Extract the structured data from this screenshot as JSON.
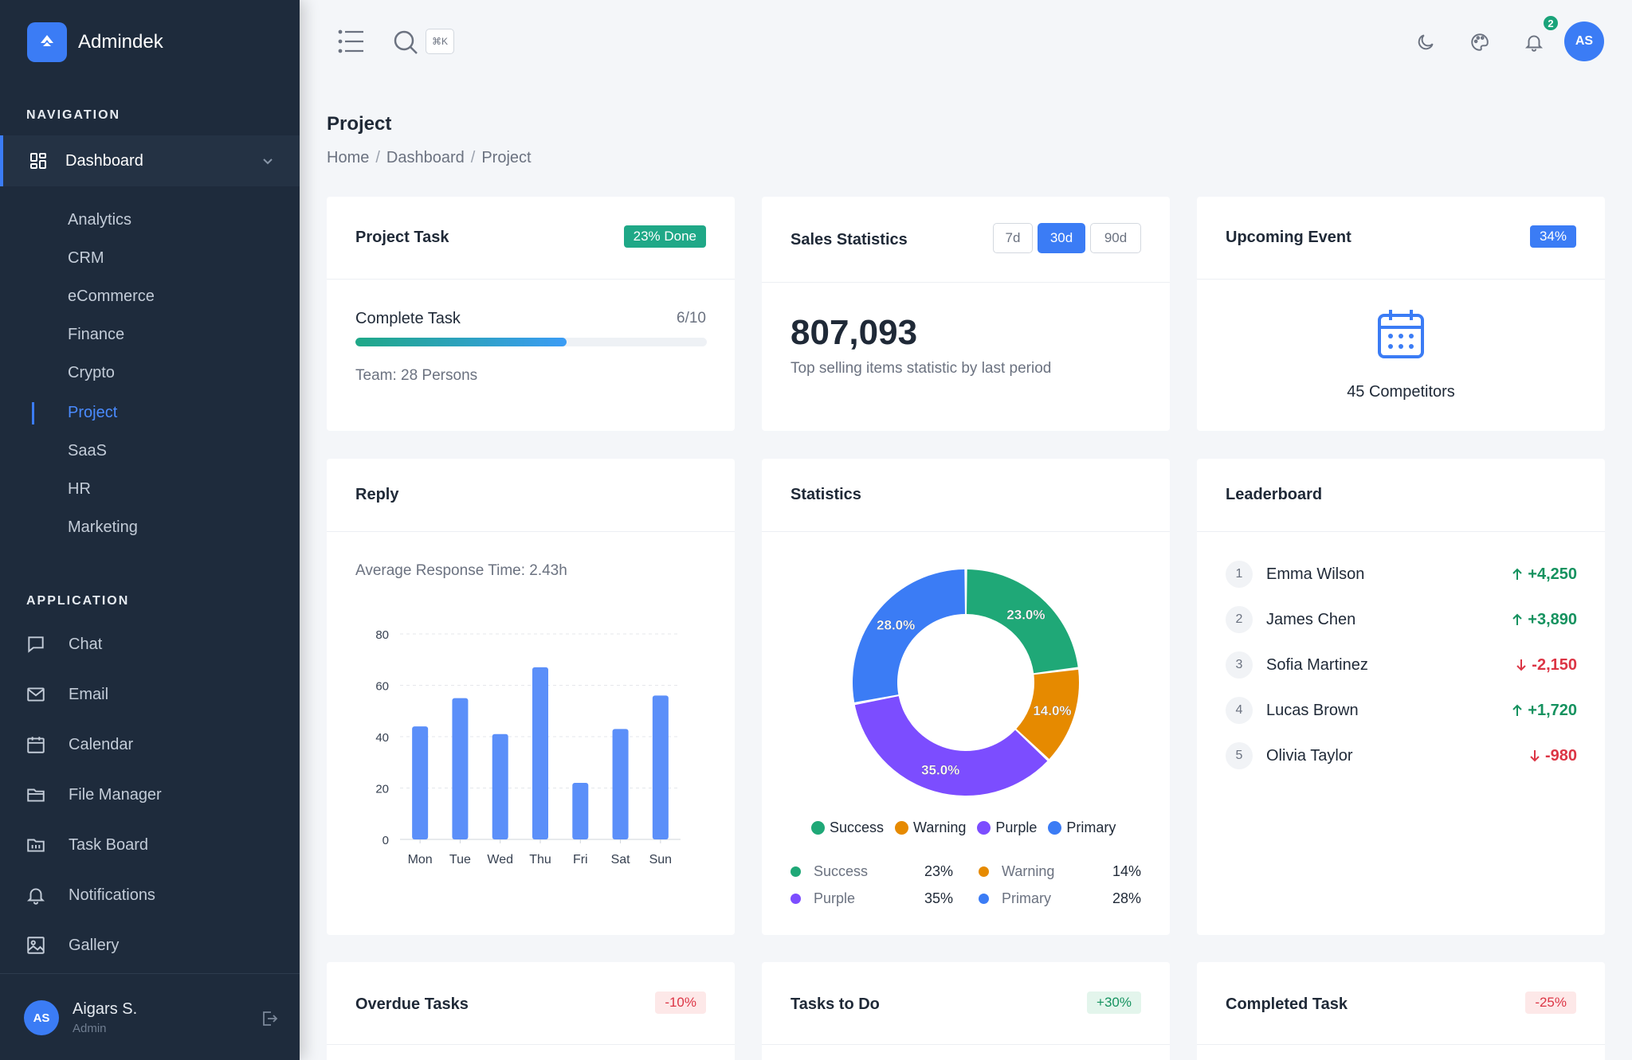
{
  "app": {
    "name": "Admindek"
  },
  "sidebar": {
    "nav_label": "NAVIGATION",
    "dashboard_label": "Dashboard",
    "sub_items": [
      "Analytics",
      "CRM",
      "eCommerce",
      "Finance",
      "Crypto",
      "Project",
      "SaaS",
      "HR",
      "Marketing"
    ],
    "active_sub": "Project",
    "app_label": "APPLICATION",
    "app_items": [
      {
        "label": "Chat",
        "icon": "chat-icon"
      },
      {
        "label": "Email",
        "icon": "mail-icon"
      },
      {
        "label": "Calendar",
        "icon": "calendar-icon"
      },
      {
        "label": "File Manager",
        "icon": "folder-icon"
      },
      {
        "label": "Task Board",
        "icon": "task-board-icon"
      },
      {
        "label": "Notifications",
        "icon": "bell-icon"
      },
      {
        "label": "Gallery",
        "icon": "image-icon"
      }
    ],
    "user": {
      "initials": "AS",
      "name": "Aigars S.",
      "role": "Admin"
    }
  },
  "header": {
    "kbd": "⌘K",
    "notification_count": "2",
    "avatar_initials": "AS"
  },
  "page": {
    "title": "Project",
    "breadcrumb": [
      "Home",
      "Dashboard",
      "Project"
    ]
  },
  "cards": {
    "project_task": {
      "title": "Project Task",
      "badge": "23% Done",
      "label": "Complete Task",
      "progress_text": "6/10",
      "progress": 0.6,
      "team": "Team: 28 Persons"
    },
    "sales": {
      "title": "Sales Statistics",
      "ranges": [
        "7d",
        "30d",
        "90d"
      ],
      "active_range": "30d",
      "value": "807,093",
      "caption": "Top selling items statistic by last period"
    },
    "event": {
      "title": "Upcoming Event",
      "badge": "34%",
      "text": "45 Competitors"
    },
    "reply": {
      "title": "Reply",
      "subtitle": "Average Response Time: 2.43h"
    },
    "statistics": {
      "title": "Statistics"
    },
    "leaderboard": {
      "title": "Leaderboard",
      "rows": [
        {
          "rank": "1",
          "name": "Emma Wilson",
          "score": "+4,250",
          "dir": "up"
        },
        {
          "rank": "2",
          "name": "James Chen",
          "score": "+3,890",
          "dir": "up"
        },
        {
          "rank": "3",
          "name": "Sofia Martinez",
          "score": "-2,150",
          "dir": "down"
        },
        {
          "rank": "4",
          "name": "Lucas Brown",
          "score": "+1,720",
          "dir": "up"
        },
        {
          "rank": "5",
          "name": "Olivia Taylor",
          "score": "-980",
          "dir": "down"
        }
      ]
    },
    "overdue": {
      "title": "Overdue Tasks",
      "badge": "-10%"
    },
    "todo": {
      "title": "Tasks to Do",
      "badge": "+30%"
    },
    "completed": {
      "title": "Completed Task",
      "badge": "-25%"
    }
  },
  "chart_data": [
    {
      "type": "bar",
      "categories": [
        "Mon",
        "Tue",
        "Wed",
        "Thu",
        "Fri",
        "Sat",
        "Sun"
      ],
      "values": [
        44,
        55,
        41,
        67,
        22,
        43,
        56
      ],
      "ylim": [
        0,
        80
      ],
      "yticks": [
        0,
        20,
        40,
        60,
        80
      ],
      "color": "#5b8ff9",
      "grid": true
    },
    {
      "type": "pie",
      "labels": [
        "Success",
        "Warning",
        "Purple",
        "Primary"
      ],
      "values": [
        23,
        14,
        35,
        28
      ],
      "slice_labels": [
        "23.0%",
        "14.0%",
        "35.0%",
        "28.0%"
      ],
      "summary_labels": [
        "23%",
        "14%",
        "35%",
        "28%"
      ],
      "colors": [
        "#1fa877",
        "#e68a00",
        "#7c4dff",
        "#3b7cf5"
      ],
      "legend": "bottom"
    }
  ]
}
